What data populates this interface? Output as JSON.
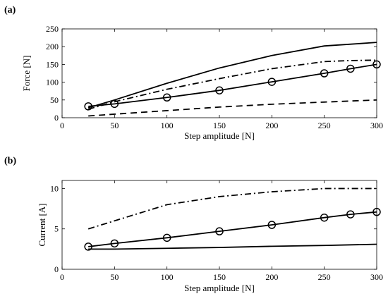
{
  "chart_data": [
    {
      "type": "line",
      "panel_label": "(a)",
      "xlabel": "Step amplitude [N]",
      "ylabel": "Force [N]",
      "xlim": [
        0,
        300
      ],
      "ylim": [
        0,
        250
      ],
      "xticks": [
        0,
        50,
        100,
        150,
        200,
        250,
        300
      ],
      "yticks": [
        0,
        50,
        100,
        150,
        200,
        250
      ],
      "grid": false,
      "legend": "none",
      "series": [
        {
          "style": "solid",
          "markers": false,
          "x": [
            25,
            50,
            100,
            150,
            200,
            250,
            275,
            300
          ],
          "y": [
            28,
            50,
            97,
            140,
            175,
            202,
            207,
            212
          ]
        },
        {
          "style": "dash-dot",
          "markers": false,
          "x": [
            25,
            50,
            100,
            150,
            200,
            250,
            275,
            300
          ],
          "y": [
            24,
            45,
            80,
            110,
            138,
            158,
            161,
            162
          ]
        },
        {
          "style": "solid",
          "markers": true,
          "x": [
            25,
            50,
            100,
            150,
            200,
            250,
            275,
            300
          ],
          "y": [
            32,
            39,
            57,
            77,
            101,
            125,
            138,
            150
          ]
        },
        {
          "style": "dashed",
          "markers": false,
          "x": [
            25,
            50,
            100,
            150,
            200,
            250,
            300
          ],
          "y": [
            5,
            10,
            20,
            30,
            38,
            44,
            50
          ]
        }
      ]
    },
    {
      "type": "line",
      "panel_label": "(b)",
      "xlabel": "Step amplitude [N]",
      "ylabel": "Current [A]",
      "xlim": [
        0,
        300
      ],
      "ylim": [
        0,
        11
      ],
      "xticks": [
        0,
        50,
        100,
        150,
        200,
        250,
        300
      ],
      "yticks": [
        0,
        5,
        10
      ],
      "grid": false,
      "legend": "none",
      "series": [
        {
          "style": "dash-dot",
          "markers": false,
          "x": [
            25,
            50,
            100,
            150,
            200,
            250,
            275,
            300
          ],
          "y": [
            5.0,
            6.0,
            8.0,
            9.0,
            9.6,
            10.0,
            10.0,
            10.0
          ]
        },
        {
          "style": "solid",
          "markers": true,
          "x": [
            25,
            50,
            100,
            150,
            200,
            250,
            275,
            300
          ],
          "y": [
            2.8,
            3.2,
            3.9,
            4.7,
            5.5,
            6.4,
            6.8,
            7.1
          ]
        },
        {
          "style": "solid",
          "markers": false,
          "x": [
            25,
            50,
            100,
            150,
            200,
            250,
            300
          ],
          "y": [
            2.5,
            2.5,
            2.6,
            2.7,
            2.85,
            2.95,
            3.1
          ]
        }
      ]
    }
  ]
}
